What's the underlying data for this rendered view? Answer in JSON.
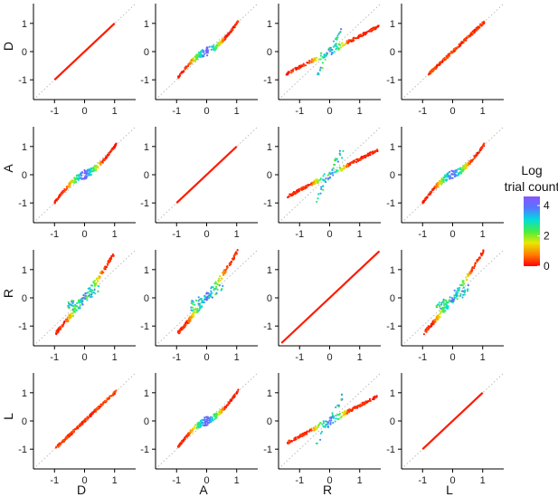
{
  "chart_data": {
    "type": "scatter",
    "layout": "4x4 scatter-plot matrix",
    "variables": [
      "D",
      "A",
      "R",
      "L"
    ],
    "row_labels": [
      "D",
      "A",
      "R",
      "L"
    ],
    "col_labels": [
      "D",
      "A",
      "R",
      "L"
    ],
    "x_tick_labels": [
      "-1",
      "0",
      "1"
    ],
    "y_tick_labels": [
      "-1",
      "0",
      "1"
    ],
    "axis_range": [
      -1.7,
      1.7
    ],
    "reference_line": "y = x (dotted gray)",
    "legend": {
      "title_line1": "Log",
      "title_line2": "trial count",
      "ticks": [
        "4",
        "2",
        "0"
      ],
      "tick_values": [
        4,
        2,
        0
      ],
      "range": [
        0,
        4.6
      ],
      "colors": [
        "#ff0000",
        "#ff7f00",
        "#e8e800",
        "#44ee44",
        "#00dddd",
        "#5577ff",
        "#8855ff"
      ],
      "placement": "right"
    },
    "panels": [
      {
        "row": 0,
        "col": 0,
        "shape": "identity",
        "xmin": -1,
        "xmax": 1
      },
      {
        "row": 0,
        "col": 1,
        "shape": "s-curve",
        "xmin": -0.95,
        "xmax": 1.05
      },
      {
        "row": 0,
        "col": 2,
        "shape": "flattened",
        "xmin": -1.45,
        "xmax": 1.65
      },
      {
        "row": 0,
        "col": 3,
        "shape": "near-identity",
        "xmin": -0.8,
        "xmax": 1.05
      },
      {
        "row": 1,
        "col": 0,
        "shape": "s-curve",
        "xmin": -1.0,
        "xmax": 1.05
      },
      {
        "row": 1,
        "col": 1,
        "shape": "identity",
        "xmin": -1,
        "xmax": 1
      },
      {
        "row": 1,
        "col": 2,
        "shape": "flattened",
        "xmin": -1.4,
        "xmax": 1.6
      },
      {
        "row": 1,
        "col": 3,
        "shape": "s-curve",
        "xmin": -1.0,
        "xmax": 1.05
      },
      {
        "row": 2,
        "col": 0,
        "shape": "steep",
        "xmin": -0.95,
        "xmax": 1.0
      },
      {
        "row": 2,
        "col": 1,
        "shape": "steep",
        "xmin": -0.95,
        "xmax": 1.05
      },
      {
        "row": 2,
        "col": 2,
        "shape": "identity",
        "xmin": -1.6,
        "xmax": 1.65
      },
      {
        "row": 2,
        "col": 3,
        "shape": "steep",
        "xmin": -0.95,
        "xmax": 1.05
      },
      {
        "row": 3,
        "col": 0,
        "shape": "near-identity",
        "xmin": -0.95,
        "xmax": 1.05
      },
      {
        "row": 3,
        "col": 1,
        "shape": "s-curve",
        "xmin": -0.95,
        "xmax": 1.05
      },
      {
        "row": 3,
        "col": 2,
        "shape": "flattened",
        "xmin": -1.4,
        "xmax": 1.6
      },
      {
        "row": 3,
        "col": 3,
        "shape": "identity",
        "xmin": -1,
        "xmax": 1
      }
    ]
  }
}
